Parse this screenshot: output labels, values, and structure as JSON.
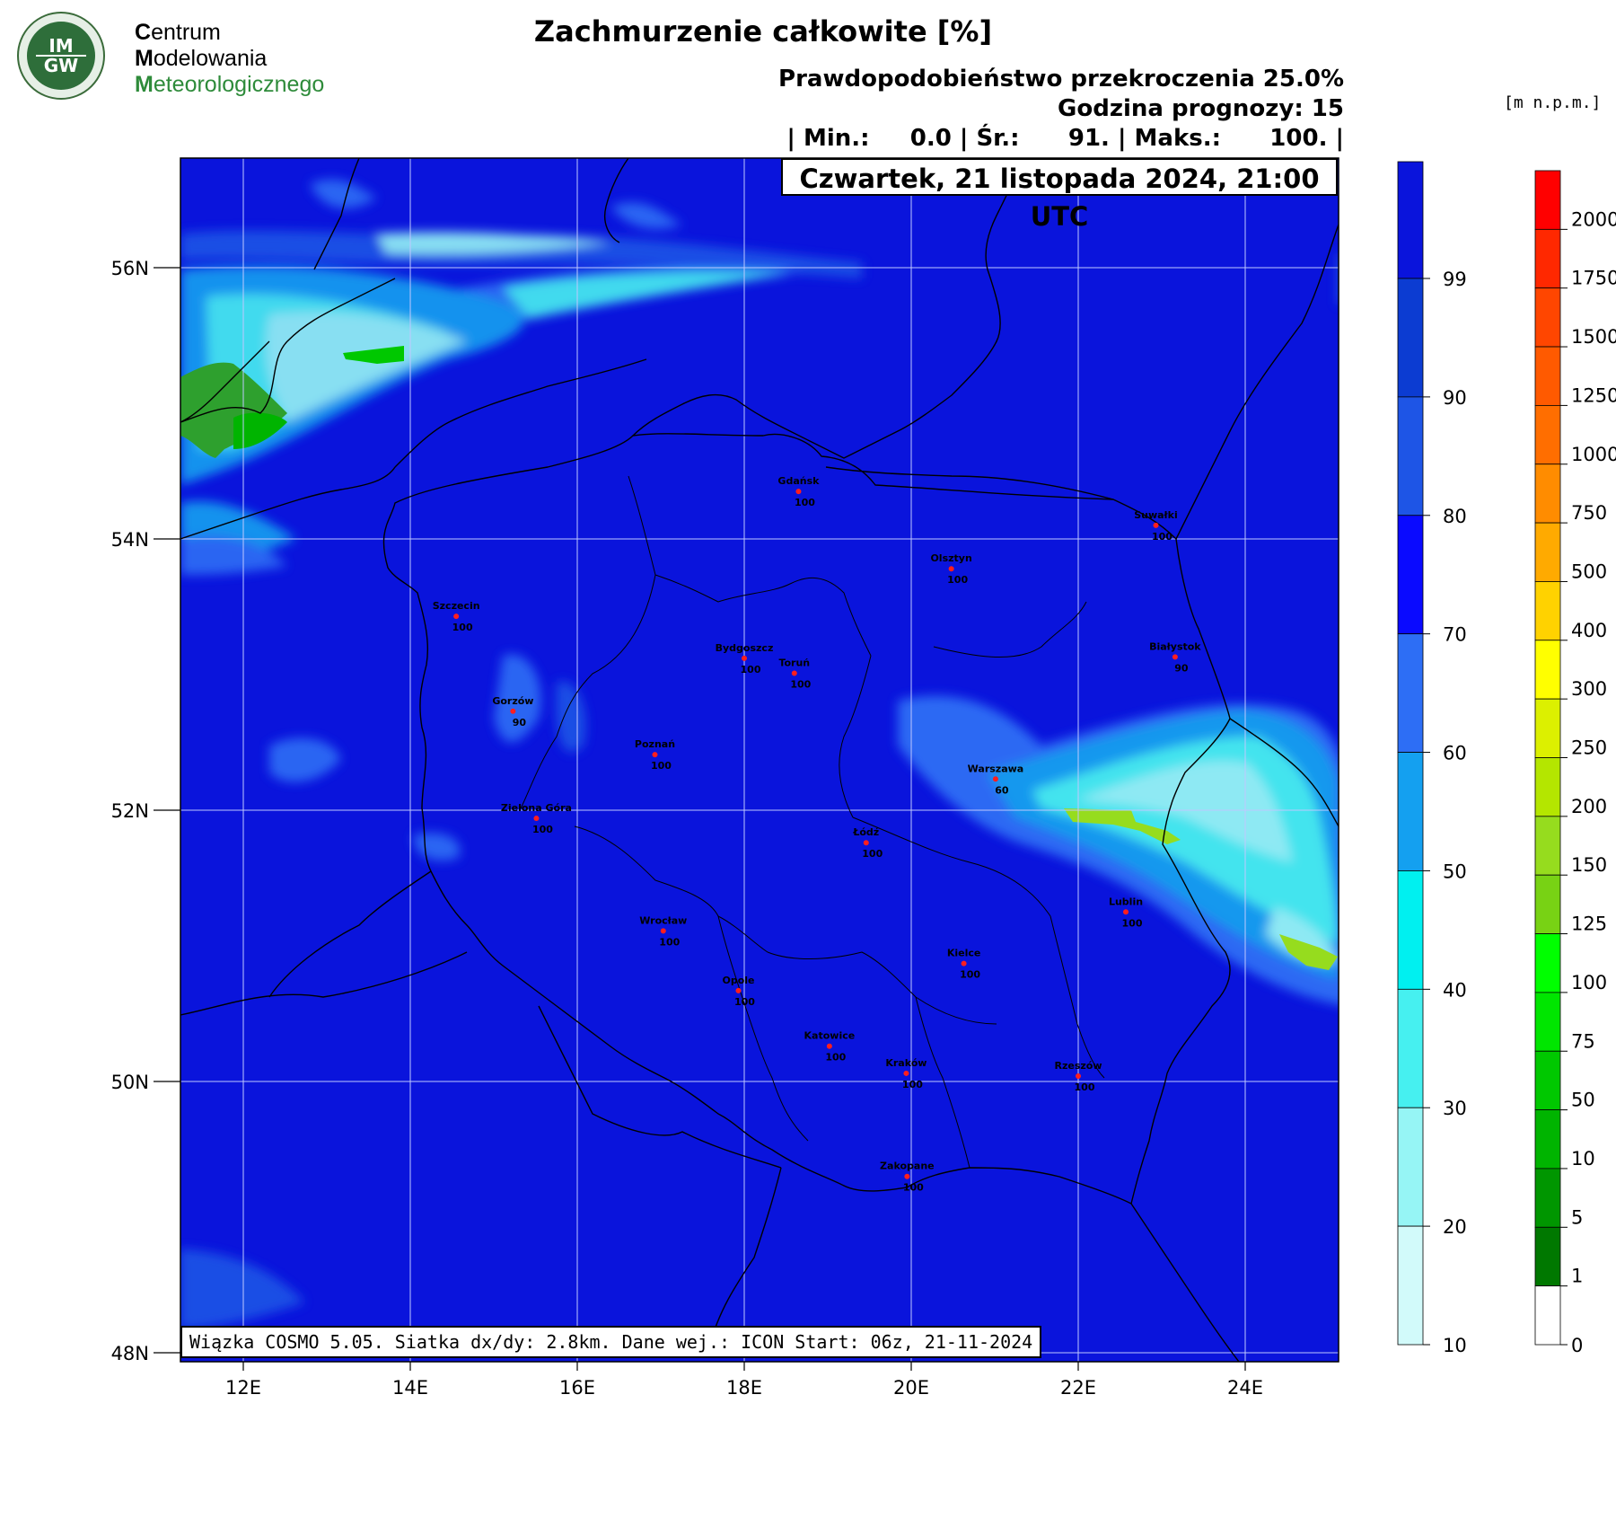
{
  "header": {
    "logo_letters": "IMGW",
    "org_name": [
      {
        "cap": "C",
        "rest": "entrum"
      },
      {
        "cap": "M",
        "rest": "odelowania"
      },
      {
        "cap": "M",
        "rest": "eteorologicznego"
      }
    ],
    "title": "Zachmurzenie całkowite [%]",
    "probability": "Prawdopodobieństwo przekroczenia 25.0%",
    "forecast_hour": "Godzina prognozy: 15",
    "stats": "| Min.:     0.0 | Śr.:      91. | Maks.:      100. |",
    "unit_label": "[m n.p.m.]",
    "date": "Czwartek, 21 listopada 2024, 21:00 UTC"
  },
  "footer": {
    "model_info": "Wiązka COSMO 5.05. Siatka dx/dy: 2.8km. Dane wej.: ICON Start: 06z, 21-11-2024"
  },
  "colors": {
    "background_cloud": "#0a14dc",
    "sea_frame": "#0a14dc"
  },
  "map": {
    "lat_labels": [
      "56N",
      "54N",
      "52N",
      "50N",
      "48N"
    ],
    "lon_labels": [
      "12E",
      "14E",
      "16E",
      "18E",
      "20E",
      "22E",
      "24E"
    ],
    "cities": [
      {
        "name": "Gdańsk",
        "value": "100",
        "lon": 18.65,
        "lat": 54.35
      },
      {
        "name": "Suwałki",
        "value": "100",
        "lon": 22.93,
        "lat": 54.1
      },
      {
        "name": "Olsztyn",
        "value": "100",
        "lon": 20.48,
        "lat": 53.78
      },
      {
        "name": "Szczecin",
        "value": "100",
        "lon": 14.55,
        "lat": 53.43
      },
      {
        "name": "Bydgoszcz",
        "value": "100",
        "lon": 18.0,
        "lat": 53.12
      },
      {
        "name": "Toruń",
        "value": "100",
        "lon": 18.6,
        "lat": 53.01
      },
      {
        "name": "Białystok",
        "value": "90",
        "lon": 23.16,
        "lat": 53.13
      },
      {
        "name": "Gorzów",
        "value": "90",
        "lon": 15.23,
        "lat": 52.73
      },
      {
        "name": "Poznań",
        "value": "100",
        "lon": 16.93,
        "lat": 52.41
      },
      {
        "name": "Warszawa",
        "value": "60",
        "lon": 21.01,
        "lat": 52.23
      },
      {
        "name": "Zielona Góra",
        "value": "100",
        "lon": 15.51,
        "lat": 51.94
      },
      {
        "name": "Łódź",
        "value": "100",
        "lon": 19.46,
        "lat": 51.76
      },
      {
        "name": "Lublin",
        "value": "100",
        "lon": 22.57,
        "lat": 51.25
      },
      {
        "name": "Wrocław",
        "value": "100",
        "lon": 17.03,
        "lat": 51.11
      },
      {
        "name": "Kielce",
        "value": "100",
        "lon": 20.63,
        "lat": 50.87
      },
      {
        "name": "Opole",
        "value": "100",
        "lon": 17.93,
        "lat": 50.67
      },
      {
        "name": "Katowice",
        "value": "100",
        "lon": 19.02,
        "lat": 50.26
      },
      {
        "name": "Kraków",
        "value": "100",
        "lon": 19.94,
        "lat": 50.06
      },
      {
        "name": "Rzeszów",
        "value": "100",
        "lon": 22.0,
        "lat": 50.04
      },
      {
        "name": "Zakopane",
        "value": "100",
        "lon": 19.95,
        "lat": 49.3
      }
    ]
  },
  "legend_cloud": {
    "labels": [
      "99",
      "90",
      "80",
      "70",
      "60",
      "50",
      "40",
      "30",
      "20",
      "10"
    ],
    "colors": [
      "#0a14dc",
      "#0c3cd2",
      "#1e55e6",
      "#0a0aff",
      "#2d6ef5",
      "#14a0f0",
      "#00f0f0",
      "#46f0f0",
      "#96f5f5",
      "#d2fafa"
    ]
  },
  "legend_height": {
    "labels": [
      "2000",
      "1750",
      "1500",
      "1250",
      "1000",
      "750",
      "500",
      "400",
      "300",
      "250",
      "200",
      "150",
      "125",
      "100",
      "75",
      "50",
      "10",
      "5",
      "1",
      "0"
    ],
    "colors": [
      "#ff0000",
      "#ff2800",
      "#ff4600",
      "#ff5a00",
      "#ff6e00",
      "#ff8c00",
      "#ffaa00",
      "#ffd200",
      "#ffff00",
      "#dcf000",
      "#b4e600",
      "#96dc1e",
      "#78d214",
      "#00ff00",
      "#00e600",
      "#00c800",
      "#00b400",
      "#009600",
      "#007800",
      "#ffffff"
    ]
  }
}
